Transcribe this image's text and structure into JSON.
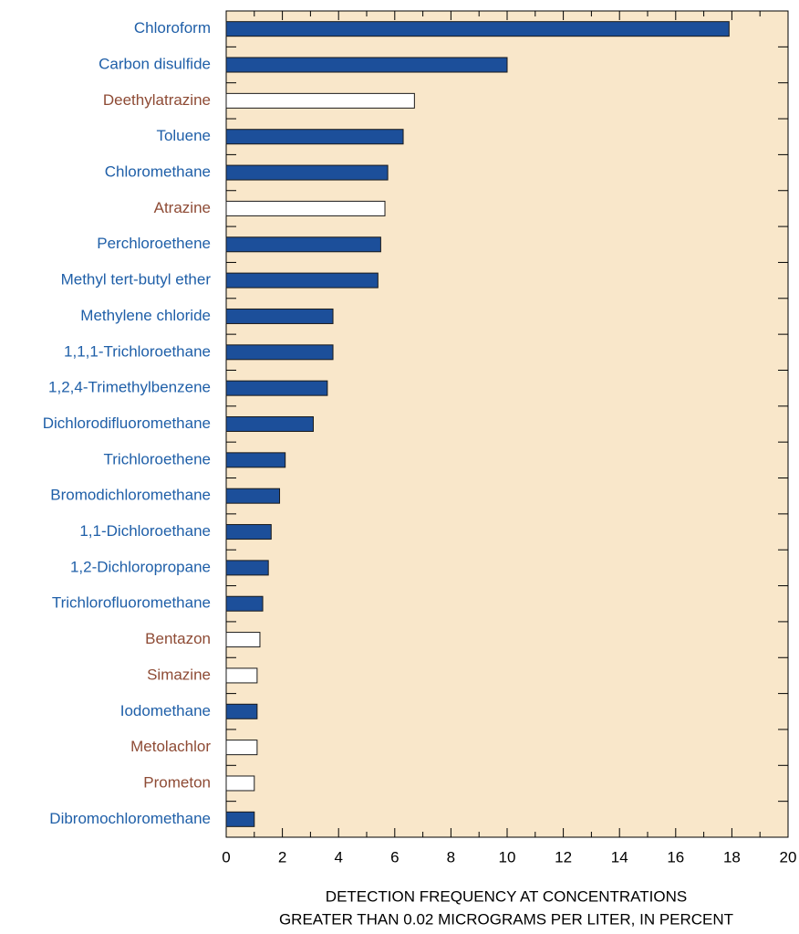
{
  "chart_data": {
    "type": "hbar",
    "categories": [
      "Chloroform",
      "Carbon disulfide",
      "Deethylatrazine",
      "Toluene",
      "Chloromethane",
      "Atrazine",
      "Perchloroethene",
      "Methyl tert-butyl ether",
      "Methylene chloride",
      "1,1,1-Trichloroethane",
      "1,2,4-Trimethylbenzene",
      "Dichlorodifluoromethane",
      "Trichloroethene",
      "Bromodichloromethane",
      "1,1-Dichloroethane",
      "1,2-Dichloropropane",
      "Trichlorofluoromethane",
      "Bentazon",
      "Simazine",
      "Iodomethane",
      "Metolachlor",
      "Prometon",
      "Dibromochloromethane"
    ],
    "values": [
      17.9,
      10.0,
      6.7,
      6.3,
      5.75,
      5.65,
      5.5,
      5.4,
      3.8,
      3.8,
      3.6,
      3.1,
      2.1,
      1.9,
      1.6,
      1.5,
      1.3,
      1.2,
      1.1,
      1.1,
      1.1,
      1.0,
      1.0
    ],
    "bar_colors": [
      "#1c4f9a",
      "#1c4f9a",
      "#ffffff",
      "#1c4f9a",
      "#1c4f9a",
      "#ffffff",
      "#1c4f9a",
      "#1c4f9a",
      "#1c4f9a",
      "#1c4f9a",
      "#1c4f9a",
      "#1c4f9a",
      "#1c4f9a",
      "#1c4f9a",
      "#1c4f9a",
      "#1c4f9a",
      "#1c4f9a",
      "#ffffff",
      "#ffffff",
      "#1c4f9a",
      "#ffffff",
      "#ffffff",
      "#1c4f9a"
    ],
    "label_colors": [
      "#1f5fa8",
      "#1f5fa8",
      "#8e4b35",
      "#1f5fa8",
      "#1f5fa8",
      "#8e4b35",
      "#1f5fa8",
      "#1f5fa8",
      "#1f5fa8",
      "#1f5fa8",
      "#1f5fa8",
      "#1f5fa8",
      "#1f5fa8",
      "#1f5fa8",
      "#1f5fa8",
      "#1f5fa8",
      "#1f5fa8",
      "#8e4b35",
      "#8e4b35",
      "#1f5fa8",
      "#8e4b35",
      "#8e4b35",
      "#1f5fa8"
    ],
    "xlim": [
      0,
      20
    ],
    "xticks": [
      0,
      2,
      4,
      6,
      8,
      10,
      12,
      14,
      16,
      18,
      20
    ],
    "xlabel": [
      "DETECTION FREQUENCY AT CONCENTRATIONS",
      "GREATER THAN 0.02 MICROGRAMS PER LITER, IN PERCENT"
    ],
    "background": "#f9e7ca"
  }
}
